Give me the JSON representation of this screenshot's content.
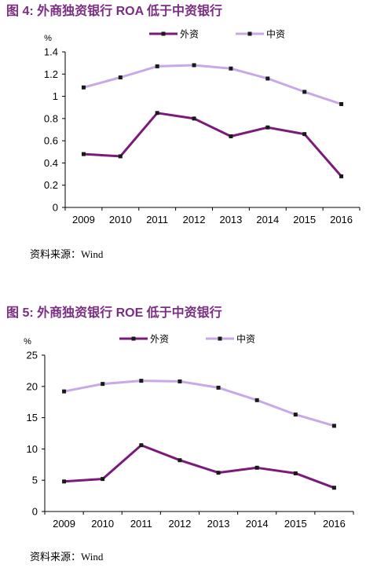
{
  "figures": [
    {
      "title": "图 4:  外商独资银行 ROA 低于中资银行",
      "source": "资料来源：Wind"
    },
    {
      "title": "图 5:  外商独资银行 ROE 低于中资银行",
      "source": "资料来源：Wind"
    }
  ],
  "chart_data": [
    {
      "type": "line",
      "title": "",
      "ylabel": "%",
      "xlabel": "",
      "categories": [
        "2009",
        "2010",
        "2011",
        "2012",
        "2013",
        "2014",
        "2015",
        "2016"
      ],
      "ylim": [
        0,
        1.4
      ],
      "yticks": [
        "0",
        "0.2",
        "0.4",
        "0.6",
        "0.8",
        "1",
        "1.2",
        "1.4"
      ],
      "legend_position": "top-center",
      "grid": false,
      "series": [
        {
          "name": "外资",
          "color": "#7b1a7a",
          "values": [
            0.48,
            0.46,
            0.85,
            0.8,
            0.64,
            0.72,
            0.66,
            0.28
          ]
        },
        {
          "name": "中资",
          "color": "#c8a8e8",
          "values": [
            1.08,
            1.17,
            1.27,
            1.28,
            1.25,
            1.16,
            1.04,
            0.93
          ]
        }
      ]
    },
    {
      "type": "line",
      "title": "",
      "ylabel": "%",
      "xlabel": "",
      "categories": [
        "2009",
        "2010",
        "2011",
        "2012",
        "2013",
        "2014",
        "2015",
        "2016"
      ],
      "ylim": [
        0,
        25
      ],
      "yticks": [
        "0",
        "5",
        "10",
        "15",
        "20",
        "25"
      ],
      "legend_position": "top-center",
      "grid": false,
      "series": [
        {
          "name": "外资",
          "color": "#7b1a7a",
          "values": [
            4.8,
            5.2,
            10.6,
            8.2,
            6.2,
            7.0,
            6.1,
            3.8
          ]
        },
        {
          "name": "中资",
          "color": "#c8a8e8",
          "values": [
            19.2,
            20.4,
            20.9,
            20.8,
            19.8,
            17.8,
            15.5,
            13.7
          ]
        }
      ]
    }
  ]
}
